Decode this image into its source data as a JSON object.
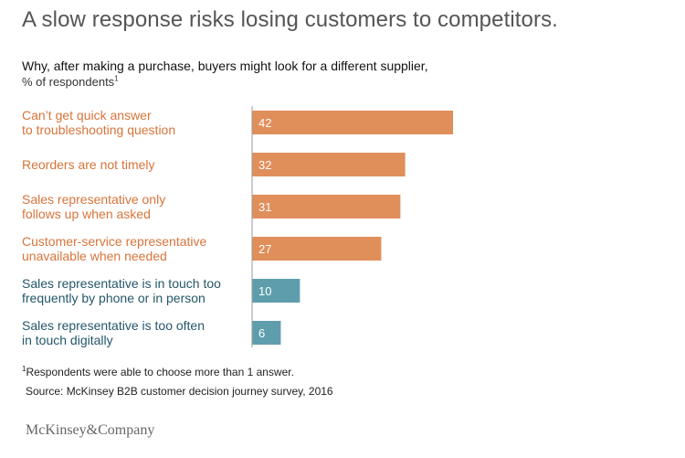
{
  "header": {
    "title": "A slow response risks losing customers to competitors.",
    "subtitle_line1": "Why, after making a purchase, buyers might look for a different supplier,",
    "subtitle_line2": "% of respondents",
    "subtitle_footnote_mark": "1"
  },
  "chart_data": {
    "type": "bar",
    "orientation": "horizontal",
    "title": "Why, after making a purchase, buyers might look for a different supplier,",
    "xlabel": "",
    "ylabel": "% of respondents",
    "xlim": [
      0,
      42
    ],
    "categories": [
      "Can’t get quick answer\nto troubleshooting question",
      "Reorders are not timely",
      "Sales representative only\nfollows up when asked",
      "Customer-service representative\nunavailable when needed",
      "Sales representative is in touch too\nfrequently by phone or in person",
      "Sales representative is too often\nin touch digitally"
    ],
    "values": [
      42,
      32,
      31,
      27,
      10,
      6
    ],
    "value_labels": [
      "42",
      "32",
      "31",
      "27",
      "10",
      "6"
    ],
    "bar_colors": [
      "#E08E5A",
      "#E08E5A",
      "#E08E5A",
      "#E08E5A",
      "#5E9EAC",
      "#5E9EAC"
    ],
    "label_colors": [
      "#D8743A",
      "#D8743A",
      "#D8743A",
      "#D8743A",
      "#24576A",
      "#24576A"
    ],
    "grid": false,
    "legend": "none"
  },
  "footer": {
    "footnote_mark": "1",
    "footnote": "Respondents were able to choose more than 1 answer.",
    "source": "Source: McKinsey B2B customer decision journey survey, 2016",
    "brand": "McKinsey&Company"
  },
  "colors": {
    "title": "#555555",
    "axis": "#999999",
    "bar_value_text": "#ffffff"
  }
}
